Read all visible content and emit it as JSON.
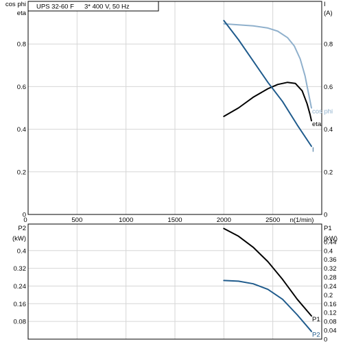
{
  "header": {
    "model": "UPS 32-60 F",
    "supply": "3* 400 V, 50 Hz"
  },
  "colors": {
    "grid": "#d6d6d6",
    "frame": "#000000",
    "eta": "#000000",
    "cos_phi": "#8fb0cc",
    "current": "#1f5b8c",
    "p1": "#000000",
    "p2": "#1f5b8c"
  },
  "chart_data": [
    {
      "id": "top",
      "type": "line",
      "title": "UPS 32-60 F   3* 400 V, 50 Hz",
      "left_axis_label_1": "cos phi",
      "left_axis_label_2": "eta",
      "right_axis_label_1": "I",
      "right_axis_label_2": "(A)",
      "xlabel": "n(1/min)",
      "xlim": [
        0,
        3000
      ],
      "ylim": [
        0,
        1.0
      ],
      "y_right_lim": [
        0,
        1.0
      ],
      "grid": true,
      "x_ticks": [
        "0",
        "500",
        "1000",
        "1500",
        "2000",
        "2500"
      ],
      "x_tick_values": [
        0,
        500,
        1000,
        1500,
        2000,
        2500
      ],
      "y_ticks": [
        "0",
        "0.2",
        "0.4",
        "0.6",
        "0.8"
      ],
      "y_tick_values": [
        0,
        0.2,
        0.4,
        0.6,
        0.8
      ],
      "y_right_ticks": [
        "0",
        "0.2",
        "0.4",
        "0.6",
        "0.8"
      ],
      "y_right_tick_values": [
        0,
        0.2,
        0.4,
        0.6,
        0.8
      ],
      "series": [
        {
          "name": "cos phi",
          "axis": "left",
          "color_key": "cos_phi",
          "x": [
            2000,
            2150,
            2300,
            2450,
            2550,
            2650,
            2720,
            2780,
            2830,
            2860,
            2895
          ],
          "y": [
            0.895,
            0.89,
            0.885,
            0.875,
            0.86,
            0.83,
            0.79,
            0.73,
            0.65,
            0.58,
            0.5
          ]
        },
        {
          "name": "eta",
          "axis": "left",
          "color_key": "eta",
          "x": [
            2000,
            2150,
            2300,
            2450,
            2550,
            2650,
            2730,
            2800,
            2850,
            2880,
            2895
          ],
          "y": [
            0.46,
            0.5,
            0.55,
            0.59,
            0.61,
            0.62,
            0.615,
            0.58,
            0.52,
            0.47,
            0.44
          ]
        },
        {
          "name": "I",
          "axis": "right",
          "color_key": "current",
          "x": [
            2000,
            2150,
            2300,
            2450,
            2600,
            2750,
            2895
          ],
          "y": [
            0.91,
            0.82,
            0.72,
            0.62,
            0.53,
            0.42,
            0.32
          ]
        }
      ]
    },
    {
      "id": "bottom",
      "type": "line",
      "left_axis_label_1": "P2",
      "left_axis_label_2": "(kW)",
      "right_axis_label_1": "P1",
      "right_axis_label_2": "(kW)",
      "xlim": [
        0,
        3000
      ],
      "ylim": [
        0,
        0.52
      ],
      "y_right_lim": [
        0,
        0.52
      ],
      "grid": true,
      "y_ticks": [
        "0.08",
        "0.16",
        "0.24",
        "0.32",
        "0.4"
      ],
      "y_tick_values": [
        0.08,
        0.16,
        0.24,
        0.32,
        0.4
      ],
      "y_right_ticks": [
        "0",
        "0.04",
        "0.08",
        "0.12",
        "0.16",
        "0.2",
        "0.24",
        "0.28",
        "0.32",
        "0.36",
        "0.4",
        "0.44"
      ],
      "y_right_tick_values": [
        0,
        0.04,
        0.08,
        0.12,
        0.16,
        0.2,
        0.24,
        0.28,
        0.32,
        0.36,
        0.4,
        0.44
      ],
      "series": [
        {
          "name": "P1",
          "axis": "right",
          "color_key": "p1",
          "x": [
            2000,
            2150,
            2300,
            2450,
            2600,
            2750,
            2895
          ],
          "y": [
            0.5,
            0.465,
            0.415,
            0.35,
            0.27,
            0.18,
            0.105
          ]
        },
        {
          "name": "P2",
          "axis": "left",
          "color_key": "p2",
          "x": [
            2000,
            2150,
            2300,
            2450,
            2600,
            2750,
            2895
          ],
          "y": [
            0.265,
            0.262,
            0.25,
            0.225,
            0.18,
            0.11,
            0.035
          ]
        }
      ]
    }
  ]
}
